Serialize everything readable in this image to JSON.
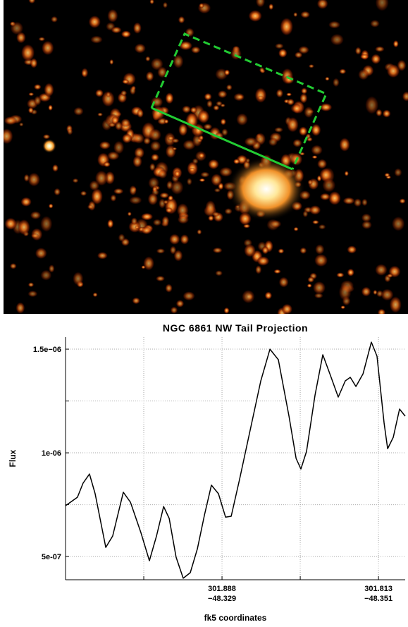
{
  "chart_data": {
    "type": "line",
    "title": "NGC 6861 NW Tail Projection",
    "x_label": "fk5 coordinates",
    "y_label": "Flux",
    "xlim": [
      301.963,
      301.8002
    ],
    "ylim": [
      3.88e-07,
      1.558e-06
    ],
    "xticks": [
      {
        "value": 301.9255,
        "label": null
      },
      {
        "value": 301.888,
        "label": [
          "301.888",
          "−48.329"
        ]
      },
      {
        "value": 301.8505,
        "label": null
      },
      {
        "value": 301.813,
        "label": [
          "301.813",
          "−48.351"
        ]
      }
    ],
    "yticks": [
      {
        "value": 5e-07,
        "label": "5e-07"
      },
      {
        "value": 7.5e-07,
        "label": null
      },
      {
        "value": 1e-06,
        "label": "1e-06"
      },
      {
        "value": 1.25e-06,
        "label": null
      },
      {
        "value": 1.5e-06,
        "label": "1.5e−06"
      }
    ],
    "grid": true,
    "color": "#000000",
    "x": [
      301.963,
      301.9606,
      301.9573,
      301.9546,
      301.9515,
      301.9488,
      301.9437,
      301.9404,
      301.9353,
      301.9319,
      301.9269,
      301.9228,
      301.9194,
      301.916,
      301.9133,
      301.91,
      301.9066,
      301.9032,
      301.8998,
      301.8964,
      301.8931,
      301.8897,
      301.8863,
      301.8836,
      301.8796,
      301.8745,
      301.8694,
      301.865,
      301.861,
      301.8559,
      301.8525,
      301.8502,
      301.8475,
      301.8434,
      301.8397,
      301.8363,
      301.8323,
      301.8289,
      301.8265,
      301.8238,
      301.8204,
      301.8164,
      301.8137,
      301.8103,
      301.8086,
      301.8059,
      301.8029,
      301.8002
    ],
    "values": [
      7.45e-07,
      7.62e-07,
      7.86e-07,
      8.54e-07,
      8.98e-07,
      8.03e-07,
      5.44e-07,
      5.99e-07,
      8.1e-07,
      7.62e-07,
      6.16e-07,
      4.8e-07,
      5.99e-07,
      7.41e-07,
      6.84e-07,
      4.97e-07,
      3.95e-07,
      4.22e-07,
      5.37e-07,
      7.01e-07,
      8.44e-07,
      8.03e-07,
      6.9e-07,
      6.94e-07,
      8.71e-07,
      1.109e-06,
      1.347e-06,
      1.5e-06,
      1.449e-06,
      1.177e-06,
      9.73e-07,
      9.22e-07,
      1.007e-06,
      1.279e-06,
      1.473e-06,
      1.381e-06,
      1.269e-06,
      1.347e-06,
      1.364e-06,
      1.32e-06,
      1.381e-06,
      1.534e-06,
      1.466e-06,
      1.143e-06,
      1.02e-06,
      1.075e-06,
      1.211e-06,
      1.177e-06
    ]
  }
}
